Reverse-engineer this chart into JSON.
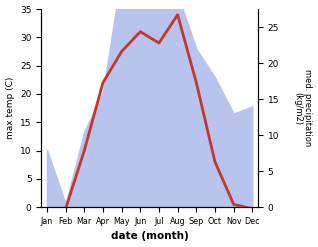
{
  "months": [
    "Jan",
    "Feb",
    "Mar",
    "Apr",
    "May",
    "Jun",
    "Jul",
    "Aug",
    "Sep",
    "Oct",
    "Nov",
    "Dec"
  ],
  "temperature": [
    -0.3,
    -0.3,
    10.0,
    22.0,
    27.5,
    31.0,
    29.0,
    34.0,
    22.0,
    8.0,
    0.5,
    -0.3
  ],
  "precipitation": [
    8.0,
    0.5,
    10.5,
    16.0,
    32.5,
    31.0,
    29.0,
    29.5,
    22.0,
    18.0,
    13.0,
    14.0
  ],
  "temp_color": "#c0392b",
  "precip_fill_color": "#b8c4ee",
  "ylabel_left": "max temp (C)",
  "ylabel_right": "med. precipitation\n(kg/m2)",
  "xlabel": "date (month)",
  "ylim_left": [
    0,
    35
  ],
  "ylim_right": [
    0,
    27.5
  ],
  "yticks_left": [
    0,
    5,
    10,
    15,
    20,
    25,
    30,
    35
  ],
  "yticks_right": [
    0,
    5,
    10,
    15,
    20,
    25
  ],
  "temp_lw": 2.0,
  "bg_color": "#ffffff"
}
